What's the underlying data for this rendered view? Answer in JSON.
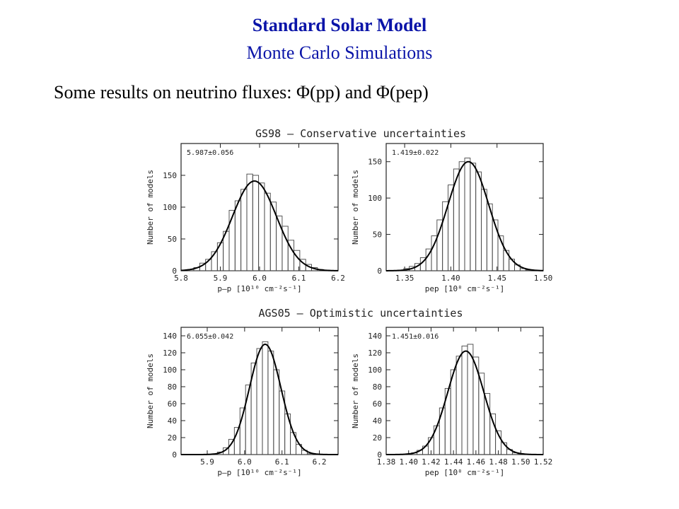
{
  "slide": {
    "title": "Standard Solar Model",
    "subtitle": "Monte Carlo Simulations",
    "intro": "Some results on neutrino fluxes: Φ(pp) and Φ(pep)",
    "colors": {
      "title": "#0a14a8",
      "text": "#000000",
      "plot": "#222222"
    }
  },
  "chart_data": [
    {
      "type": "bar",
      "group": "GS98 – Conservative uncertainties",
      "annotation": "5.987±0.056",
      "xlabel": "p–p [10¹⁰ cm⁻²s⁻¹]",
      "ylabel": "Number of models",
      "xlim": [
        5.8,
        6.2
      ],
      "ylim": [
        0,
        200
      ],
      "xticks": [
        "5.8",
        "5.9",
        "6.0",
        "6.1",
        "6.2"
      ],
      "yticks": [
        "0",
        "50",
        "100",
        "150"
      ],
      "gauss": {
        "mean": 5.987,
        "sigma": 0.056,
        "peak": 141
      },
      "x": [
        5.81,
        5.825,
        5.84,
        5.855,
        5.87,
        5.885,
        5.9,
        5.915,
        5.93,
        5.945,
        5.96,
        5.975,
        5.99,
        6.005,
        6.02,
        6.035,
        6.05,
        6.065,
        6.08,
        6.095,
        6.11,
        6.125,
        6.14,
        6.155,
        6.17,
        6.185
      ],
      "values": [
        0,
        2,
        5,
        12,
        18,
        30,
        44,
        62,
        95,
        110,
        128,
        152,
        150,
        138,
        122,
        108,
        86,
        70,
        48,
        32,
        18,
        10,
        5,
        2,
        1,
        0
      ]
    },
    {
      "type": "bar",
      "group": "GS98 – Conservative uncertainties",
      "annotation": "1.419±0.022",
      "xlabel": "pep [10⁸ cm⁻²s⁻¹]",
      "ylabel": "Number of models",
      "xlim": [
        1.33,
        1.5
      ],
      "ylim": [
        0,
        175
      ],
      "xticks": [
        "1.35",
        "1.40",
        "1.45",
        "1.50"
      ],
      "yticks": [
        "0",
        "50",
        "100",
        "150"
      ],
      "gauss": {
        "mean": 1.419,
        "sigma": 0.022,
        "peak": 150
      },
      "x": [
        1.34,
        1.346,
        1.352,
        1.358,
        1.364,
        1.37,
        1.376,
        1.382,
        1.388,
        1.394,
        1.4,
        1.406,
        1.412,
        1.418,
        1.424,
        1.43,
        1.436,
        1.442,
        1.448,
        1.454,
        1.46,
        1.466,
        1.472,
        1.478,
        1.484,
        1.49
      ],
      "values": [
        0,
        1,
        3,
        6,
        10,
        18,
        30,
        48,
        70,
        95,
        118,
        140,
        150,
        155,
        148,
        136,
        112,
        92,
        70,
        48,
        28,
        16,
        8,
        3,
        1,
        0
      ]
    },
    {
      "type": "bar",
      "group": "AGS05 – Optimistic uncertainties",
      "annotation": "6.055±0.042",
      "xlabel": "p–p [10¹⁰ cm⁻²s⁻¹]",
      "ylabel": "Number of models",
      "xlim": [
        5.83,
        6.25
      ],
      "ylim": [
        0,
        150
      ],
      "xticks": [
        "5.9",
        "6.0",
        "6.1",
        "6.2"
      ],
      "yticks": [
        "0",
        "20",
        "40",
        "60",
        "80",
        "100",
        "120",
        "140"
      ],
      "gauss": {
        "mean": 6.055,
        "sigma": 0.042,
        "peak": 130
      },
      "x": [
        5.92,
        5.935,
        5.95,
        5.965,
        5.98,
        5.995,
        6.01,
        6.025,
        6.04,
        6.055,
        6.07,
        6.085,
        6.1,
        6.115,
        6.13,
        6.145,
        6.16,
        6.175
      ],
      "values": [
        1,
        3,
        8,
        18,
        32,
        55,
        82,
        108,
        125,
        133,
        122,
        100,
        75,
        48,
        26,
        12,
        5,
        1
      ]
    },
    {
      "type": "bar",
      "group": "AGS05 – Optimistic uncertainties",
      "annotation": "1.451±0.016",
      "xlabel": "pep [10⁸ cm⁻²s⁻¹]",
      "ylabel": "Number of models",
      "xlim": [
        1.38,
        1.52
      ],
      "ylim": [
        0,
        150
      ],
      "xticks": [
        "1.38",
        "1.40",
        "1.42",
        "1.44",
        "1.46",
        "1.48",
        "1.50",
        "1.52"
      ],
      "yticks": [
        "0",
        "20",
        "40",
        "60",
        "80",
        "100",
        "120",
        "140"
      ],
      "gauss": {
        "mean": 1.451,
        "sigma": 0.016,
        "peak": 122
      },
      "x": [
        1.4,
        1.405,
        1.41,
        1.415,
        1.42,
        1.425,
        1.43,
        1.435,
        1.44,
        1.445,
        1.45,
        1.455,
        1.46,
        1.465,
        1.47,
        1.475,
        1.48,
        1.485,
        1.49,
        1.495,
        1.5
      ],
      "values": [
        1,
        2,
        5,
        10,
        20,
        34,
        55,
        78,
        100,
        116,
        128,
        130,
        115,
        96,
        72,
        48,
        28,
        14,
        6,
        2,
        1
      ]
    }
  ]
}
